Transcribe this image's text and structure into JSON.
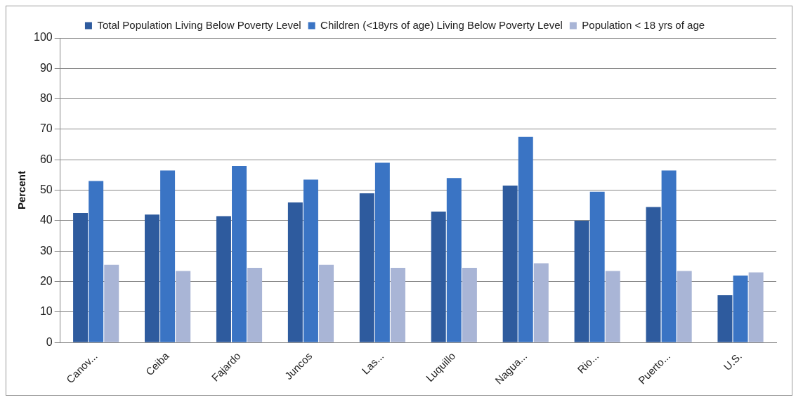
{
  "chart_data": {
    "type": "bar",
    "ylabel": "Percent",
    "categories": [
      "Canov...",
      "Ceiba",
      "Fajardo",
      "Juncos",
      "Las...",
      "Luquillo",
      "Nagua...",
      "Rio...",
      "Puerto...",
      "U.S."
    ],
    "series": [
      {
        "name": "Total Population Living Below Poverty Level",
        "color": "#2e5b9e",
        "values": [
          42.5,
          42,
          41.5,
          46,
          49,
          43,
          51.5,
          40,
          44.5,
          15.5
        ]
      },
      {
        "name": "Children (<18yrs of age) Living Below Poverty Level",
        "color": "#3a74c4",
        "values": [
          53,
          56.5,
          58,
          53.5,
          59,
          54,
          67.5,
          49.5,
          56.5,
          22
        ]
      },
      {
        "name": "Population < 18 yrs of age",
        "color": "#a9b5d6",
        "values": [
          25.5,
          23.5,
          24.5,
          25.5,
          24.5,
          24.5,
          26,
          23.5,
          23.5,
          23
        ]
      }
    ],
    "ylim": [
      0,
      100
    ],
    "yticks": [
      0,
      10,
      20,
      30,
      40,
      50,
      60,
      70,
      80,
      90,
      100
    ],
    "grid": "y",
    "legend": "top"
  }
}
